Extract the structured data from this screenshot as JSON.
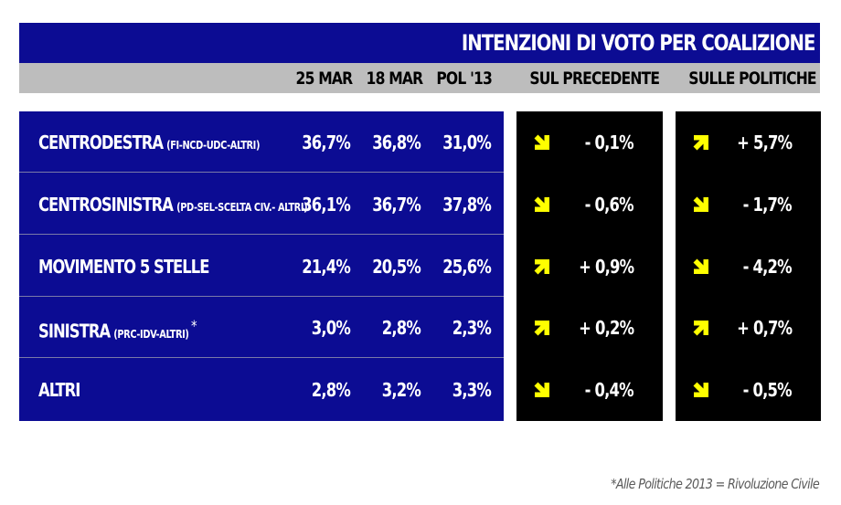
{
  "title": "INTENZIONI DI VOTO PER COALIZIONE",
  "headers": {
    "col1": "25 MAR",
    "col2": "18 MAR",
    "col3": "POL '13",
    "prev": "SUL PRECEDENTE",
    "pol": "SULLE POLITICHE"
  },
  "colors": {
    "blue": "#0c0c93",
    "header_gray": "#bdbdbd",
    "black": "#000000",
    "arrow_yellow": "#ffff00"
  },
  "chart_data": {
    "type": "table",
    "columns": [
      "25 MAR",
      "18 MAR",
      "POL '13",
      "SUL PRECEDENTE",
      "SULLE POLITICHE"
    ],
    "rows": [
      {
        "name": "CENTRODESTRA",
        "detail": "(FI-NCD-UDC-ALTRI)",
        "star": "",
        "v25mar": "36,7%",
        "v18mar": "36,8%",
        "vpol13": "31,0%",
        "prev": "- 0,1%",
        "prev_dir": "down",
        "pol": "+ 5,7%",
        "pol_dir": "up"
      },
      {
        "name": "CENTROSINISTRA",
        "detail": "(PD-SEL-SCELTA CIV.- ALTRI)",
        "star": "",
        "v25mar": "36,1%",
        "v18mar": "36,7%",
        "vpol13": "37,8%",
        "prev": "- 0,6%",
        "prev_dir": "down",
        "pol": "- 1,7%",
        "pol_dir": "down"
      },
      {
        "name": "MOVIMENTO 5 STELLE",
        "detail": "",
        "star": "",
        "v25mar": "21,4%",
        "v18mar": "20,5%",
        "vpol13": "25,6%",
        "prev": "+ 0,9%",
        "prev_dir": "up",
        "pol": "- 4,2%",
        "pol_dir": "down"
      },
      {
        "name": "SINISTRA",
        "detail": "(PRC-IDV-ALTRI)",
        "star": "*",
        "v25mar": "3,0%",
        "v18mar": "2,8%",
        "vpol13": "2,3%",
        "prev": "+ 0,2%",
        "prev_dir": "up",
        "pol": "+ 0,7%",
        "pol_dir": "up"
      },
      {
        "name": "ALTRI",
        "detail": "",
        "star": "",
        "v25mar": "2,8%",
        "v18mar": "3,2%",
        "vpol13": "3,3%",
        "prev": "- 0,4%",
        "prev_dir": "down",
        "pol": "- 0,5%",
        "pol_dir": "down"
      }
    ]
  },
  "footnote": "*Alle Politiche 2013 = Rivoluzione Civile"
}
